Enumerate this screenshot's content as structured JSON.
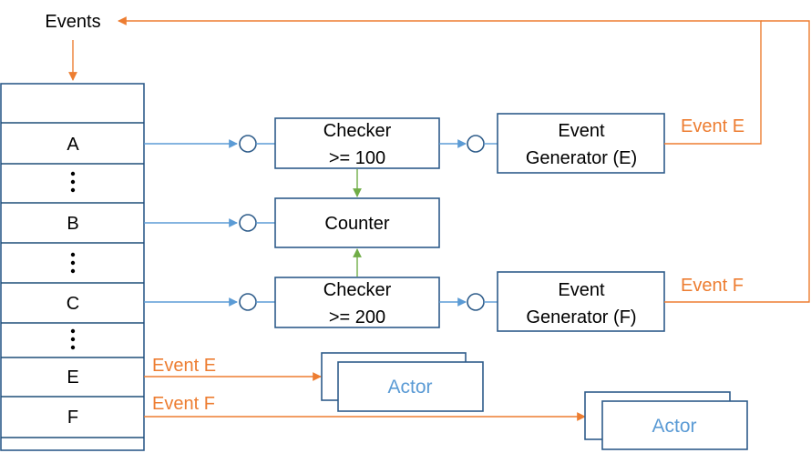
{
  "title": "Events",
  "queue": {
    "slots": [
      "",
      "A",
      "⋮",
      "B",
      "⋮",
      "C",
      "⋮",
      "E",
      "F",
      ""
    ]
  },
  "components": {
    "checker_100": {
      "line1": "Checker",
      "line2": ">= 100"
    },
    "checker_200": {
      "line1": "Checker",
      "line2": ">= 200"
    },
    "counter": "Counter",
    "generator_e": {
      "line1": "Event",
      "line2": "Generator (E)"
    },
    "generator_f": {
      "line1": "Event",
      "line2": "Generator (F)"
    },
    "actor_e": "Actor",
    "actor_f": "Actor"
  },
  "edge_labels": {
    "generator_e_out": "Event E",
    "generator_f_out": "Event F",
    "queue_e_out": "Event E",
    "queue_f_out": "Event F"
  },
  "colors": {
    "box_stroke": "#2E5C8A",
    "signal_blue": "#5B9BD5",
    "control_green": "#70AD47",
    "event_orange": "#ED7D31"
  }
}
